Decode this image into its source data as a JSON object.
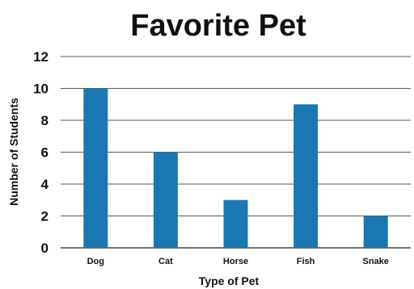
{
  "chart_data": {
    "type": "bar",
    "title": "Favorite Pet",
    "xlabel": "Type of Pet",
    "ylabel": "Number of Students",
    "categories": [
      "Dog",
      "Cat",
      "Horse",
      "Fish",
      "Snake"
    ],
    "values": [
      10,
      6,
      3,
      9,
      2
    ],
    "ylim": [
      0,
      12
    ],
    "yticks": [
      "0",
      "2",
      "4",
      "6",
      "8",
      "10",
      "12"
    ],
    "grid": true,
    "bar_color": "#1a77b2",
    "grid_color": "#222222"
  }
}
